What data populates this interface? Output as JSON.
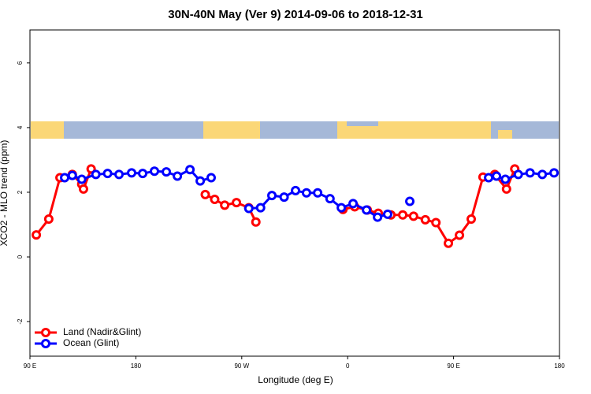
{
  "chart_data": {
    "type": "line",
    "title": "30N-40N May (Ver 9)   2014-09-06 to 2018-12-31",
    "x_label": "Longitude (deg E)",
    "y_label": "XCO2 - MLO trend (ppm)",
    "xlim": [
      90,
      540
    ],
    "ylim": [
      -3.07,
      7.02
    ],
    "xticks": [
      {
        "value": 90,
        "label": "90 E"
      },
      180,
      {
        "value": 270,
        "label": "90 W"
      },
      {
        "value": 360,
        "label": "0"
      },
      {
        "value": 450,
        "label": "90 E"
      },
      {
        "value": 540,
        "label": "180"
      }
    ],
    "yticks": [
      -2,
      0,
      2,
      4,
      6
    ],
    "legend": "bottom-left",
    "series": [
      {
        "name": "Land (Nadir&Glint)",
        "color": "#ff0000",
        "x": [
          95.4,
          106,
          115.5,
          126,
          134,
          135.5,
          142,
          null,
          239,
          247,
          255.5,
          265.5,
          276,
          282,
          null,
          356,
          366,
          376.7,
          386,
          396.8,
          406.8,
          416,
          426,
          435,
          445.6,
          455,
          465,
          475,
          485,
          495,
          502
        ],
        "values": [
          0.68,
          1.17,
          2.45,
          2.55,
          2.25,
          2.1,
          2.72,
          null,
          1.93,
          1.78,
          1.6,
          1.68,
          1.52,
          1.08,
          null,
          1.47,
          1.55,
          1.45,
          1.35,
          1.3,
          1.3,
          1.26,
          1.15,
          1.06,
          0.42,
          0.67,
          1.17,
          2.47,
          2.55,
          2.1,
          2.72
        ]
      },
      {
        "name": "Ocean (Glint)",
        "color": "#0000ff",
        "x": [
          119.5,
          126,
          134,
          146,
          156,
          165.7,
          176.4,
          185.8,
          195.8,
          205.9,
          215.3,
          226,
          234.7,
          244,
          null,
          276,
          286,
          295.6,
          306,
          315.7,
          325,
          334.5,
          345,
          354.6,
          364.6,
          376,
          385.4,
          394,
          null,
          412.8,
          null,
          479.8,
          486.5,
          494,
          505,
          515,
          525.4,
          535.4
        ],
        "values": [
          2.45,
          2.52,
          2.4,
          2.55,
          2.58,
          2.55,
          2.6,
          2.58,
          2.65,
          2.63,
          2.5,
          2.7,
          2.35,
          2.45,
          null,
          1.5,
          1.52,
          1.9,
          1.85,
          2.05,
          1.98,
          1.98,
          1.8,
          1.52,
          1.65,
          1.45,
          1.23,
          1.32,
          null,
          1.72,
          null,
          2.45,
          2.5,
          2.4,
          2.55,
          2.6,
          2.55,
          2.6
        ]
      }
    ]
  }
}
